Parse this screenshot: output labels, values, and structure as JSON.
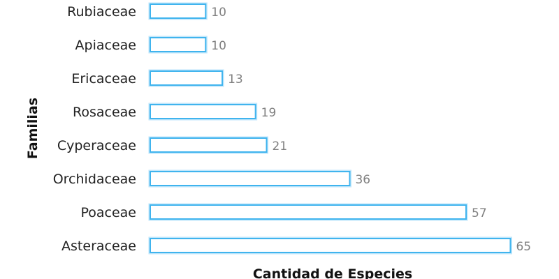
{
  "chart_data": {
    "type": "bar",
    "orientation": "horizontal",
    "categories": [
      "Rubiaceae",
      "Apiaceae",
      "Ericaceae",
      "Rosaceae",
      "Cyperaceae",
      "Orchidaceae",
      "Poaceae",
      "Asteraceae"
    ],
    "values": [
      10,
      10,
      13,
      19,
      21,
      36,
      57,
      65
    ],
    "xlabel": "Cantidad de Especies",
    "ylabel": "Familias",
    "xlim": [
      0,
      65
    ],
    "grid": false,
    "legend": "none",
    "colors": {
      "bar_fill": "#ffffff",
      "bar_stroke": "#40b4ee",
      "bar_glow": "#bfe6fb",
      "value_label": "#808080"
    }
  }
}
